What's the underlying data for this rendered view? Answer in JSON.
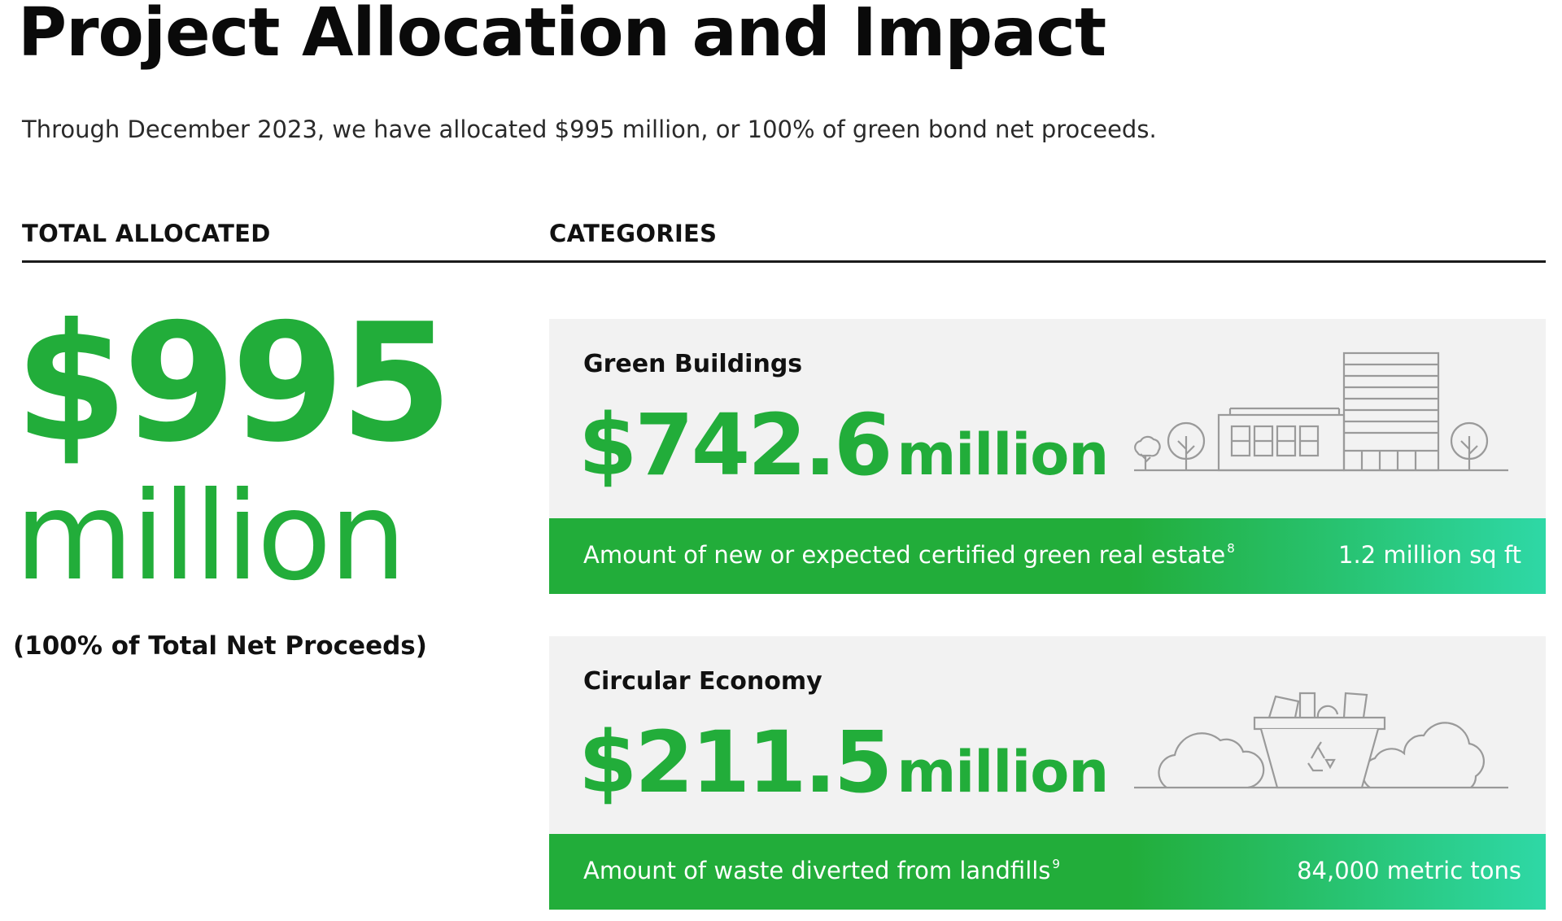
{
  "header": {
    "title": "Project Allocation and Impact",
    "intro": "Through December 2023, we have allocated $995 million, or 100% of green bond net proceeds."
  },
  "columns": {
    "left_heading": "TOTAL ALLOCATED",
    "right_heading": "CATEGORIES"
  },
  "total": {
    "amount": "$995",
    "unit": "million",
    "note": "(100% of Total Net Proceeds)"
  },
  "categories": [
    {
      "name": "Green Buildings",
      "amount": "$742.6",
      "unit": "million",
      "metric": "Amount of new or expected certified green real estate",
      "footnote": "8",
      "metric_value": "1.2 million sq ft",
      "icon": "green-building-icon"
    },
    {
      "name": "Circular Economy",
      "amount": "$211.5",
      "unit": "million",
      "metric": "Amount of waste diverted from landfills",
      "footnote": "9",
      "metric_value": "84,000 metric tons",
      "icon": "recycling-bin-icon"
    }
  ],
  "colors": {
    "accent_green": "#22ad3a",
    "gradient_end": "#2ed8a6",
    "card_background": "#f2f2f2",
    "illustration_line": "#9a9a9a"
  }
}
